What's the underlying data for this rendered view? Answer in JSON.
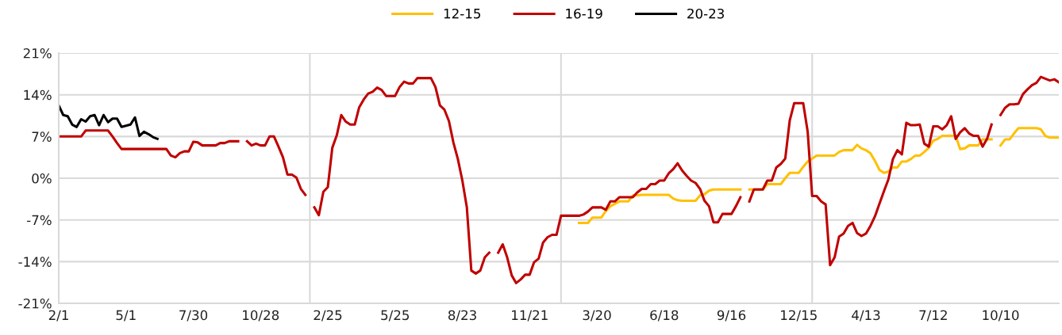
{
  "chart_data": {
    "type": "line",
    "categories": [
      "2/1",
      null,
      null,
      null,
      null,
      null,
      null,
      null,
      null,
      null,
      null,
      null,
      null,
      null,
      null,
      "5/1",
      null,
      null,
      null,
      null,
      null,
      null,
      null,
      null,
      null,
      null,
      null,
      null,
      null,
      null,
      "7/30",
      null,
      null,
      null,
      null,
      null,
      null,
      null,
      null,
      null,
      null,
      null,
      null,
      null,
      null,
      "10/28",
      null,
      null,
      null,
      null,
      null,
      null,
      null,
      null,
      null,
      null,
      null,
      null,
      null,
      null,
      "2/25",
      null,
      null,
      null,
      null,
      null,
      null,
      null,
      null,
      null,
      null,
      null,
      null,
      null,
      null,
      "5/25",
      null,
      null,
      null,
      null,
      null,
      null,
      null,
      null,
      null,
      null,
      null,
      null,
      null,
      null,
      "8/23",
      null,
      null,
      null,
      null,
      null,
      null,
      null,
      null,
      null,
      null,
      null,
      null,
      null,
      null,
      "11/21",
      null,
      null,
      null,
      null,
      null,
      null,
      null,
      null,
      null,
      null,
      null,
      null,
      null,
      null,
      "3/20",
      null,
      null,
      null,
      null,
      null,
      null,
      null,
      null,
      null,
      null,
      null,
      null,
      null,
      null,
      "6/18",
      null,
      null,
      null,
      null,
      null,
      null,
      null,
      null,
      null,
      null,
      null,
      null,
      null,
      null,
      "9/16",
      null,
      null,
      null,
      null,
      null,
      null,
      null,
      null,
      null,
      null,
      null,
      null,
      null,
      null,
      "12/15",
      null,
      null,
      null,
      null,
      null,
      null,
      null,
      null,
      null,
      null,
      null,
      null,
      null,
      null,
      "4/13",
      null,
      null,
      null,
      null,
      null,
      null,
      null,
      null,
      null,
      null,
      null,
      null,
      null,
      null,
      "7/12",
      null,
      null,
      null,
      null,
      null,
      null,
      null,
      null,
      null,
      null,
      null,
      null,
      null,
      null,
      "10/10",
      null,
      null,
      null,
      null,
      null,
      null,
      null,
      null,
      null,
      null,
      null,
      null,
      null
    ],
    "ylim": [
      -21,
      21
    ],
    "yticks": [
      {
        "value": -21,
        "label": "-21%"
      },
      {
        "value": -14,
        "label": "-14%"
      },
      {
        "value": -7,
        "label": "-7%"
      },
      {
        "value": 0,
        "label": "0%"
      },
      {
        "value": 7,
        "label": "7%"
      },
      {
        "value": 14,
        "label": "14%"
      },
      {
        "value": 21,
        "label": "21%"
      }
    ],
    "grid": "y",
    "legend": "top",
    "marker": "none",
    "line_style": "solid",
    "series": [
      {
        "name": "12-15",
        "color": "#ffc000",
        "values": [
          null,
          null,
          null,
          null,
          null,
          null,
          null,
          null,
          null,
          null,
          null,
          null,
          null,
          null,
          null,
          null,
          null,
          null,
          null,
          null,
          null,
          null,
          null,
          null,
          null,
          null,
          null,
          null,
          null,
          null,
          null,
          null,
          null,
          null,
          null,
          null,
          null,
          null,
          null,
          null,
          null,
          null,
          null,
          null,
          null,
          null,
          null,
          null,
          null,
          null,
          null,
          null,
          null,
          null,
          null,
          null,
          null,
          null,
          null,
          null,
          null,
          null,
          null,
          null,
          null,
          null,
          null,
          null,
          null,
          null,
          null,
          null,
          null,
          null,
          null,
          null,
          null,
          null,
          null,
          null,
          null,
          null,
          null,
          null,
          null,
          null,
          null,
          null,
          null,
          null,
          null,
          null,
          null,
          null,
          null,
          null,
          null,
          null,
          null,
          null,
          null,
          null,
          null,
          null,
          null,
          null,
          null,
          null,
          null,
          null,
          null,
          null,
          null,
          null,
          null,
          null,
          -7.5,
          -7.5,
          -7.5,
          -6.6,
          -6.6,
          -6.6,
          -5.5,
          -4.7,
          -4.3,
          -3.9,
          -3.9,
          -3.9,
          -2.9,
          -2.9,
          -2.8,
          -2.8,
          -2.8,
          -2.8,
          -2.8,
          -2.8,
          -2.8,
          -3.4,
          -3.7,
          -3.8,
          -3.8,
          -3.8,
          -3.8,
          -2.9,
          -2.7,
          -2.1,
          -1.9,
          -1.9,
          -1.9,
          -1.9,
          -1.9,
          -1.9,
          -1.9,
          null,
          -1.9,
          -1.9,
          -1.9,
          -1.9,
          -1.0,
          -1.0,
          -1.0,
          -1.0,
          0,
          0.9,
          0.9,
          0.9,
          1.9,
          2.8,
          3.3,
          3.8,
          3.8,
          3.8,
          3.8,
          3.8,
          4.4,
          4.7,
          4.7,
          4.7,
          5.6,
          5.0,
          4.7,
          4.2,
          2.9,
          1.4,
          0.9,
          1.1,
          1.8,
          1.8,
          2.8,
          2.8,
          3.2,
          3.8,
          3.8,
          4.4,
          5.1,
          6.3,
          6.6,
          7.1,
          7.1,
          7.1,
          7.1,
          4.9,
          5.0,
          5.5,
          5.5,
          5.5,
          6.5,
          6.5,
          6.5,
          null,
          5.5,
          6.5,
          6.5,
          7.5,
          8.4,
          8.4,
          8.4,
          8.4,
          8.4,
          8.2,
          7.1,
          6.8,
          6.8,
          6.8
        ]
      },
      {
        "name": "16-19",
        "color": "#c00000",
        "values": [
          7,
          7,
          7,
          7,
          7,
          7,
          8,
          8,
          8,
          8,
          8,
          8,
          7,
          5.9,
          4.9,
          4.9,
          4.9,
          4.9,
          4.9,
          4.9,
          4.9,
          4.9,
          4.9,
          4.9,
          4.9,
          3.8,
          3.5,
          4.2,
          4.5,
          4.5,
          6.1,
          6.0,
          5.5,
          5.5,
          5.5,
          5.5,
          5.9,
          5.9,
          6.2,
          6.2,
          6.2,
          null,
          6.2,
          5.5,
          5.8,
          5.5,
          5.5,
          7,
          7,
          5.3,
          3.5,
          0.6,
          0.6,
          0.1,
          -1.8,
          -2.8,
          null,
          -4.9,
          -6.2,
          -2.3,
          -1.5,
          5.1,
          7.2,
          10.6,
          9.5,
          9.0,
          9.0,
          11.9,
          13.2,
          14.2,
          14.5,
          15.2,
          14.8,
          13.8,
          13.8,
          13.8,
          15.3,
          16.2,
          15.9,
          15.9,
          16.8,
          16.8,
          16.8,
          16.8,
          15.3,
          12.2,
          11.5,
          9.6,
          6.0,
          3.2,
          -0.4,
          -4.9,
          -15.5,
          -16.0,
          -15.5,
          -13.3,
          -12.5,
          null,
          -12.5,
          -11.1,
          -13.3,
          -16.3,
          -17.6,
          -17.0,
          -16.2,
          -16.2,
          -14.1,
          -13.5,
          -10.8,
          -9.9,
          -9.5,
          -9.5,
          -6.3,
          -6.3,
          -6.3,
          -6.3,
          -6.3,
          -6.1,
          -5.6,
          -4.9,
          -4.9,
          -4.9,
          -5.3,
          -3.9,
          -3.9,
          -3.2,
          -3.2,
          -3.2,
          -3.2,
          -2.4,
          -1.8,
          -1.8,
          -1.0,
          -1.0,
          -0.4,
          -0.4,
          0.8,
          1.5,
          2.5,
          1.3,
          0.4,
          -0.4,
          -0.8,
          -1.8,
          -3.8,
          -4.7,
          -7.4,
          -7.4,
          -6.0,
          -6.0,
          -6.0,
          -4.7,
          -3.2,
          null,
          -3.9,
          -1.9,
          -1.9,
          -1.9,
          -0.4,
          -0.4,
          1.8,
          2.4,
          3.3,
          9.7,
          12.6,
          12.6,
          12.6,
          7.8,
          -3.0,
          -3.0,
          -3.9,
          -4.4,
          -14.6,
          -13.3,
          -9.8,
          -9.3,
          -8.0,
          -7.5,
          -9.2,
          -9.7,
          -9.3,
          -8.0,
          -6.4,
          -4.3,
          -2.2,
          -0.2,
          3.2,
          4.7,
          4.0,
          9.3,
          8.9,
          8.9,
          9.0,
          5.8,
          5.3,
          8.7,
          8.7,
          8.2,
          8.9,
          10.4,
          6.6,
          7.7,
          8.4,
          7.5,
          7.1,
          7.1,
          5.3,
          6.6,
          9.0,
          null,
          10.6,
          11.8,
          12.4,
          12.4,
          12.5,
          14.1,
          14.9,
          15.6,
          16.0,
          17.0,
          16.7,
          16.4,
          16.6,
          16.1
        ]
      },
      {
        "name": "20-23",
        "color": "#000000",
        "values": [
          12.2,
          10.6,
          10.4,
          9.0,
          8.6,
          9.9,
          9.5,
          10.4,
          10.6,
          8.9,
          10.6,
          9.4,
          10,
          10,
          8.6,
          8.8,
          9.0,
          10.2,
          7.1,
          7.8,
          7.4,
          6.9,
          6.6,
          null,
          null,
          null,
          null,
          null,
          null,
          null,
          null,
          null,
          null,
          null,
          null,
          null,
          null,
          null,
          null,
          null,
          null,
          null,
          null,
          null,
          null,
          null,
          null,
          null,
          null,
          null,
          null,
          null,
          null,
          null,
          null,
          null,
          null,
          null,
          null,
          null,
          null,
          null,
          null,
          null,
          null,
          null,
          null,
          null,
          null,
          null,
          null,
          null,
          null,
          null,
          null,
          null,
          null,
          null,
          null,
          null,
          null,
          null,
          null,
          null,
          null,
          null,
          null,
          null,
          null,
          null,
          null,
          null,
          null,
          null,
          null,
          null,
          null,
          null,
          null,
          null,
          null,
          null,
          null,
          null,
          null,
          null,
          null,
          null,
          null,
          null,
          null,
          null,
          null,
          null,
          null,
          null,
          null,
          null,
          null,
          null,
          null,
          null,
          null,
          null,
          null,
          null,
          null,
          null,
          null,
          null,
          null,
          null,
          null,
          null,
          null,
          null,
          null,
          null,
          null,
          null,
          null,
          null,
          null,
          null,
          null,
          null,
          null,
          null,
          null,
          null,
          null,
          null,
          null,
          null,
          null,
          null,
          null,
          null,
          null,
          null,
          null,
          null,
          null,
          null,
          null,
          null,
          null,
          null,
          null,
          null,
          null,
          null,
          null,
          null,
          null,
          null,
          null,
          null,
          null,
          null,
          null,
          null,
          null,
          null,
          null,
          null,
          null,
          null,
          null,
          null,
          null,
          null,
          null,
          null,
          null,
          null,
          null,
          null,
          null,
          null,
          null,
          null,
          null,
          null,
          null,
          null,
          null,
          null,
          null,
          null,
          null,
          null,
          null,
          null,
          null,
          null,
          null,
          null,
          null,
          null,
          null,
          null,
          null,
          null
        ]
      }
    ]
  }
}
